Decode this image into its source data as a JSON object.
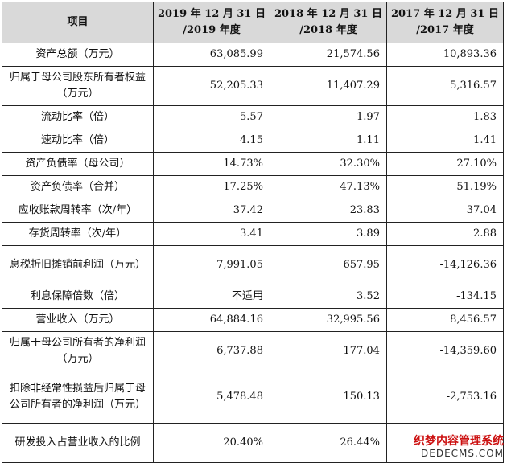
{
  "header": {
    "item": "项目",
    "years": [
      {
        "line1": "2019 年 12 月 31 日",
        "line2": "/2019 年度"
      },
      {
        "line1": "2018 年 12 月 31 日",
        "line2": "/2018 年度"
      },
      {
        "line1": "2017 年 12 月 31 日",
        "line2": "/2017 年度"
      }
    ]
  },
  "rows": [
    {
      "label": "资产总额（万元）",
      "v2019": "63,085.99",
      "v2018": "21,574.56",
      "v2017": "10,893.36"
    },
    {
      "label": "归属于母公司股东所有者权益（万元）",
      "v2019": "52,205.33",
      "v2018": "11,407.29",
      "v2017": "5,316.57"
    },
    {
      "label": "流动比率（倍）",
      "v2019": "5.57",
      "v2018": "1.97",
      "v2017": "1.83"
    },
    {
      "label": "速动比率（倍）",
      "v2019": "4.15",
      "v2018": "1.11",
      "v2017": "1.41"
    },
    {
      "label": "资产负债率（母公司）",
      "v2019": "14.73%",
      "v2018": "32.30%",
      "v2017": "27.10%"
    },
    {
      "label": "资产负债率（合并）",
      "v2019": "17.25%",
      "v2018": "47.13%",
      "v2017": "51.19%"
    },
    {
      "label": "应收账款周转率（次/年）",
      "v2019": "37.42",
      "v2018": "23.83",
      "v2017": "37.04"
    },
    {
      "label": "存货周转率（次/年）",
      "v2019": "3.41",
      "v2018": "3.89",
      "v2017": "2.88"
    },
    {
      "label": "息税折旧摊销前利润（万元）",
      "v2019": "7,991.05",
      "v2018": "657.95",
      "v2017": "-14,126.36"
    },
    {
      "label": "利息保障倍数（倍）",
      "v2019": "不适用",
      "v2018": "3.52",
      "v2017": "-134.15"
    },
    {
      "label": "营业收入（万元）",
      "v2019": "64,884.16",
      "v2018": "32,995.56",
      "v2017": "8,456.57"
    },
    {
      "label": "归属于母公司所有者的净利润（万元）",
      "v2019": "6,737.88",
      "v2018": "177.04",
      "v2017": "-14,359.60"
    },
    {
      "label": "扣除非经常性损益后归属于母公司所有者的净利润（万元）",
      "v2019": "5,478.48",
      "v2018": "150.13",
      "v2017": "-2,753.16"
    },
    {
      "label": "研发投入占营业收入的比例",
      "v2019": "20.40%",
      "v2018": "26.44%",
      "v2017": ""
    }
  ],
  "watermark": {
    "line1": "织梦内容管理系统",
    "line2": "DEDECMS.COM"
  }
}
